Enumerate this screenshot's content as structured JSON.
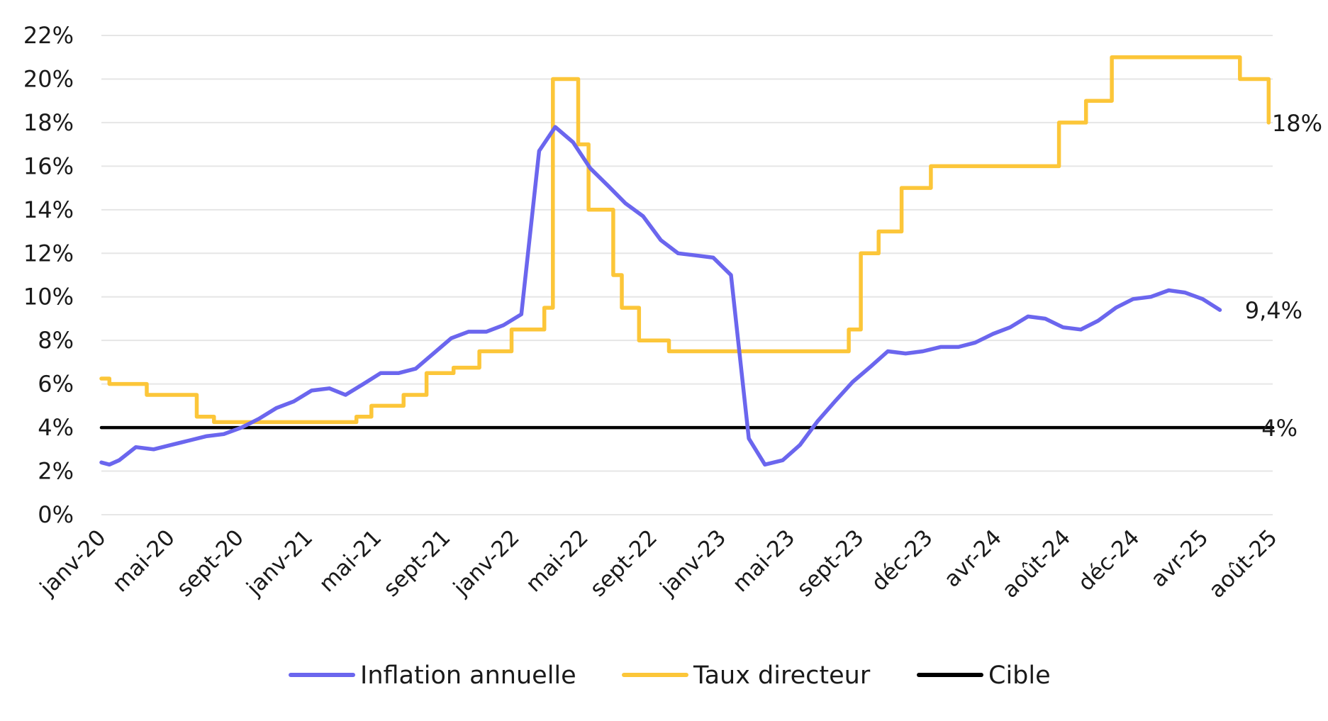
{
  "chart_data": {
    "type": "line",
    "title": "",
    "xlabel": "",
    "ylabel": "",
    "ylim": [
      0,
      22
    ],
    "y_ticks": [
      "0%",
      "2%",
      "4%",
      "6%",
      "8%",
      "10%",
      "12%",
      "14%",
      "16%",
      "18%",
      "20%",
      "22%"
    ],
    "x_ticks": [
      "janv-20",
      "mai-20",
      "sept-20",
      "janv-21",
      "mai-21",
      "sept-21",
      "janv-22",
      "mai-22",
      "sept-22",
      "janv-23",
      "mai-23",
      "sept-23",
      "déc-23",
      "avr-24",
      "août-24",
      "déc-24",
      "avr-25",
      "août-25"
    ],
    "grid": true,
    "legend_position": "bottom",
    "series": [
      {
        "name": "Inflation annuelle",
        "color": "#6b66ee",
        "step": false,
        "end_label": "9,4%",
        "points": [
          [
            "2020-01",
            2.4
          ],
          [
            "2020-01-15",
            2.3
          ],
          [
            "2020-02",
            2.5
          ],
          [
            "2020-03",
            3.1
          ],
          [
            "2020-04",
            3.0
          ],
          [
            "2020-05",
            3.2
          ],
          [
            "2020-06",
            3.4
          ],
          [
            "2020-07",
            3.6
          ],
          [
            "2020-08",
            3.7
          ],
          [
            "2020-09",
            4.0
          ],
          [
            "2020-10",
            4.4
          ],
          [
            "2020-11",
            4.9
          ],
          [
            "2020-12",
            5.2
          ],
          [
            "2021-01",
            5.7
          ],
          [
            "2021-02",
            5.8
          ],
          [
            "2021-03",
            5.5
          ],
          [
            "2021-04",
            6.0
          ],
          [
            "2021-05",
            6.5
          ],
          [
            "2021-06",
            6.5
          ],
          [
            "2021-07",
            6.7
          ],
          [
            "2021-08",
            7.4
          ],
          [
            "2021-09",
            8.1
          ],
          [
            "2021-10",
            8.4
          ],
          [
            "2021-11",
            8.4
          ],
          [
            "2021-12",
            8.7
          ],
          [
            "2022-01",
            9.2
          ],
          [
            "2022-02",
            16.7
          ],
          [
            "2022-03",
            17.8
          ],
          [
            "2022-04",
            17.1
          ],
          [
            "2022-05",
            15.9
          ],
          [
            "2022-06",
            15.1
          ],
          [
            "2022-07",
            14.3
          ],
          [
            "2022-08",
            13.7
          ],
          [
            "2022-09",
            12.6
          ],
          [
            "2022-10",
            12.0
          ],
          [
            "2022-11",
            11.9
          ],
          [
            "2022-12",
            11.8
          ],
          [
            "2023-01",
            11.0
          ],
          [
            "2023-02",
            3.5
          ],
          [
            "2023-03",
            2.3
          ],
          [
            "2023-04",
            2.5
          ],
          [
            "2023-05",
            3.2
          ],
          [
            "2023-06",
            4.3
          ],
          [
            "2023-07",
            5.2
          ],
          [
            "2023-08",
            6.1
          ],
          [
            "2023-09",
            6.8
          ],
          [
            "2023-10",
            7.5
          ],
          [
            "2023-11",
            7.4
          ],
          [
            "2023-12",
            7.5
          ],
          [
            "2024-01",
            7.7
          ],
          [
            "2024-02",
            7.7
          ],
          [
            "2024-03",
            7.9
          ],
          [
            "2024-04",
            8.3
          ],
          [
            "2024-05",
            8.6
          ],
          [
            "2024-06",
            9.1
          ],
          [
            "2024-07",
            9.0
          ],
          [
            "2024-08",
            8.6
          ],
          [
            "2024-09",
            8.5
          ],
          [
            "2024-10",
            8.9
          ],
          [
            "2024-11",
            9.5
          ],
          [
            "2024-12",
            9.9
          ],
          [
            "2025-01",
            10.0
          ],
          [
            "2025-02",
            10.3
          ],
          [
            "2025-03",
            10.2
          ],
          [
            "2025-04",
            9.9
          ],
          [
            "2025-05",
            9.4
          ]
        ]
      },
      {
        "name": "Taux directeur",
        "color": "#fcc639",
        "step": true,
        "end_label": "18%",
        "points": [
          [
            "2020-01",
            6.25
          ],
          [
            "2020-01-15",
            6.0
          ],
          [
            "2020-03-20",
            5.5
          ],
          [
            "2020-06-15",
            4.5
          ],
          [
            "2020-07-15",
            4.25
          ],
          [
            "2021-03-20",
            4.5
          ],
          [
            "2021-04-15",
            5.0
          ],
          [
            "2021-06-10",
            5.5
          ],
          [
            "2021-07-20",
            6.5
          ],
          [
            "2021-09-05",
            6.75
          ],
          [
            "2021-10-20",
            7.5
          ],
          [
            "2021-12-15",
            8.5
          ],
          [
            "2022-02-10",
            9.5
          ],
          [
            "2022-02-25",
            20.0
          ],
          [
            "2022-04-10",
            17.0
          ],
          [
            "2022-04-28",
            14.0
          ],
          [
            "2022-06-10",
            11.0
          ],
          [
            "2022-06-25",
            9.5
          ],
          [
            "2022-07-25",
            8.0
          ],
          [
            "2022-09-15",
            7.5
          ],
          [
            "2023-07-25",
            8.5
          ],
          [
            "2023-08-15",
            12.0
          ],
          [
            "2023-09-15",
            13.0
          ],
          [
            "2023-10-25",
            15.0
          ],
          [
            "2023-12-15",
            16.0
          ],
          [
            "2024-07-25",
            18.0
          ],
          [
            "2024-09-10",
            19.0
          ],
          [
            "2024-10-25",
            21.0
          ],
          [
            "2025-06-05",
            20.0
          ],
          [
            "2025-07-25",
            18.0
          ]
        ]
      },
      {
        "name": "Cible",
        "color": "#000000",
        "step": false,
        "end_label": "4%",
        "points": [
          [
            "2020-01",
            4.0
          ],
          [
            "2025-08",
            4.0
          ]
        ]
      }
    ]
  }
}
